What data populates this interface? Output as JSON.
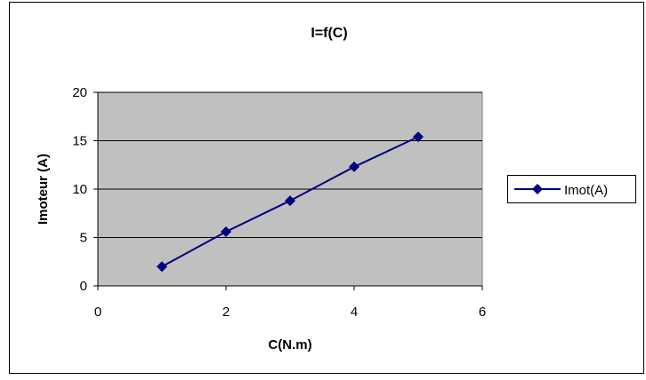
{
  "chart_data": {
    "type": "line",
    "title": "I=f(C)",
    "xlabel": "C(N.m)",
    "ylabel": "Imoteur (A)",
    "xlim": [
      0,
      6
    ],
    "ylim": [
      0,
      20
    ],
    "xticks": [
      0,
      2,
      4,
      6
    ],
    "yticks": [
      0,
      5,
      10,
      15,
      20
    ],
    "grid": "horizontal",
    "legend_position": "right",
    "series": [
      {
        "name": "Imot(A)",
        "x": [
          1,
          2,
          3,
          4,
          5
        ],
        "y": [
          2.0,
          5.6,
          8.8,
          12.3,
          15.4
        ],
        "color": "#000080",
        "marker": "diamond"
      }
    ],
    "colors": {
      "plot_background": "#c0c0c0",
      "gridline": "#000000",
      "frame": "#000000"
    }
  }
}
